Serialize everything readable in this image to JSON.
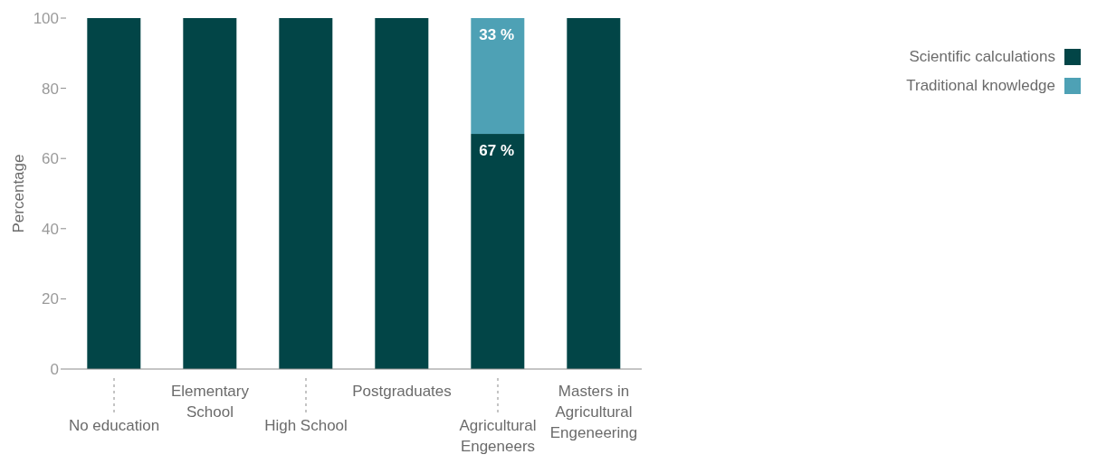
{
  "chart_data": {
    "type": "bar",
    "stacked": true,
    "ylabel": "Percentage",
    "categories": [
      "No education",
      "Elementary School",
      "High School",
      "Postgraduates",
      "Agricultural Engeneers",
      "Masters in Agricultural Engeneering"
    ],
    "series": [
      {
        "name": "Scientific calculations",
        "color": "#024547",
        "values": [
          100,
          100,
          100,
          100,
          67,
          100
        ],
        "value_labels": [
          null,
          null,
          null,
          null,
          "67 %",
          null
        ]
      },
      {
        "name": "Traditional knowledge",
        "color": "#4ea1b5",
        "values": [
          0,
          0,
          0,
          0,
          33,
          0
        ],
        "value_labels": [
          null,
          null,
          null,
          null,
          "33 %",
          null
        ]
      }
    ],
    "ylim": [
      0,
      100
    ],
    "yticks": [
      0,
      20,
      40,
      60,
      80,
      100
    ],
    "grid": false,
    "legend": "top right"
  }
}
